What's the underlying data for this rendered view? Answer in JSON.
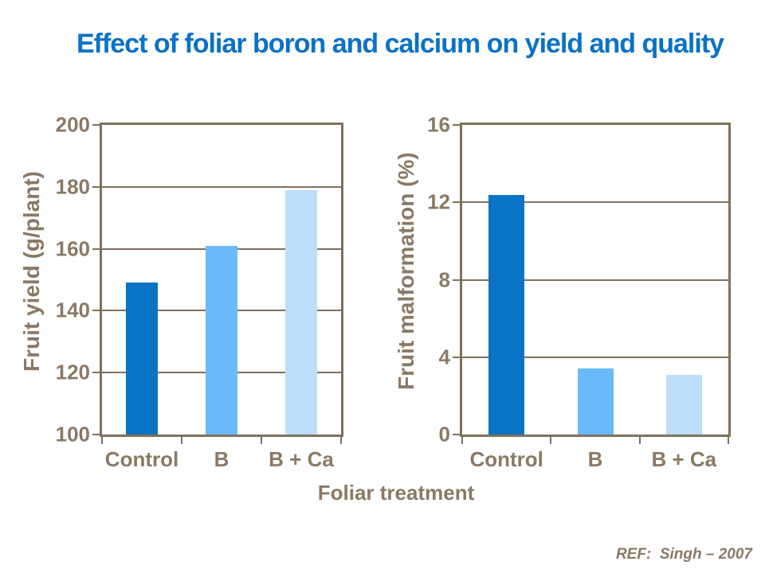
{
  "slide": {
    "title": "Effect of foliar boron and calcium on yield and quality",
    "x_axis_label": "Foliar treatment",
    "reference": "REF:  Singh – 2007"
  },
  "colors": {
    "title_blue": "#0B72C6",
    "axis_line_brown": "#80715C",
    "label_brown": "#8A7964",
    "bar_dark_blue": "#0A74C4",
    "bar_medium_blue": "#69BAFB",
    "bar_light_blue": "#BBDEFB",
    "background": "#FFFFFF"
  },
  "chart_data": [
    {
      "type": "bar",
      "title": "",
      "ylabel": "Fruit yield (g/plant)",
      "xlabel": "Foliar treatment",
      "categories": [
        "Control",
        "B",
        "B + Ca"
      ],
      "values": [
        149,
        161,
        179
      ],
      "ylim": [
        100,
        200
      ],
      "yticks": [
        100,
        120,
        140,
        160,
        180,
        200
      ],
      "bar_colors": [
        "#0A74C4",
        "#69BAFB",
        "#BBDEFB"
      ],
      "grid": true,
      "legend": "none"
    },
    {
      "type": "bar",
      "title": "",
      "ylabel": "Fruit malformation (%)",
      "xlabel": "Foliar treatment",
      "categories": [
        "Control",
        "B",
        "B + Ca"
      ],
      "values": [
        12.4,
        3.4,
        3.1
      ],
      "ylim": [
        0,
        16
      ],
      "yticks": [
        0,
        4,
        8,
        12,
        16
      ],
      "bar_colors": [
        "#0A74C4",
        "#69BAFB",
        "#BBDEFB"
      ],
      "grid": true,
      "legend": "none"
    }
  ]
}
